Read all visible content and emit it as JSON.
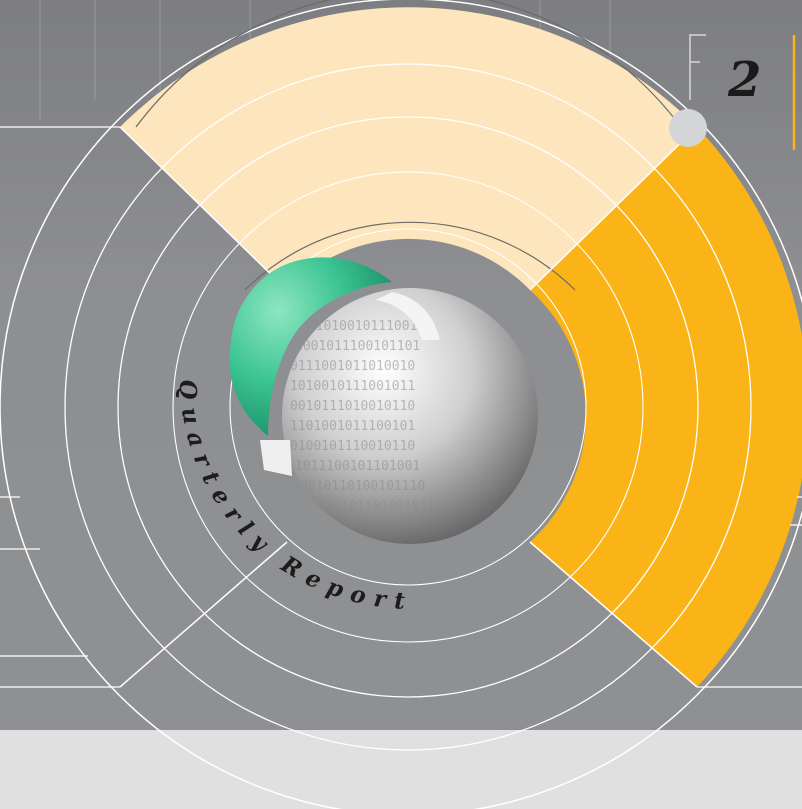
{
  "cover": {
    "title": "Quarterly Report",
    "quarter_number": "2"
  },
  "colors": {
    "background_gray": "#8e8f92",
    "light_band": "#fde6bd",
    "accent_orange": "#fbb417",
    "globe_green": "#3cc492",
    "footer_gray": "#e0e0e0"
  },
  "icons": {
    "globe": "binary-globe-icon",
    "corner_dot": "corner-dot-icon"
  }
}
